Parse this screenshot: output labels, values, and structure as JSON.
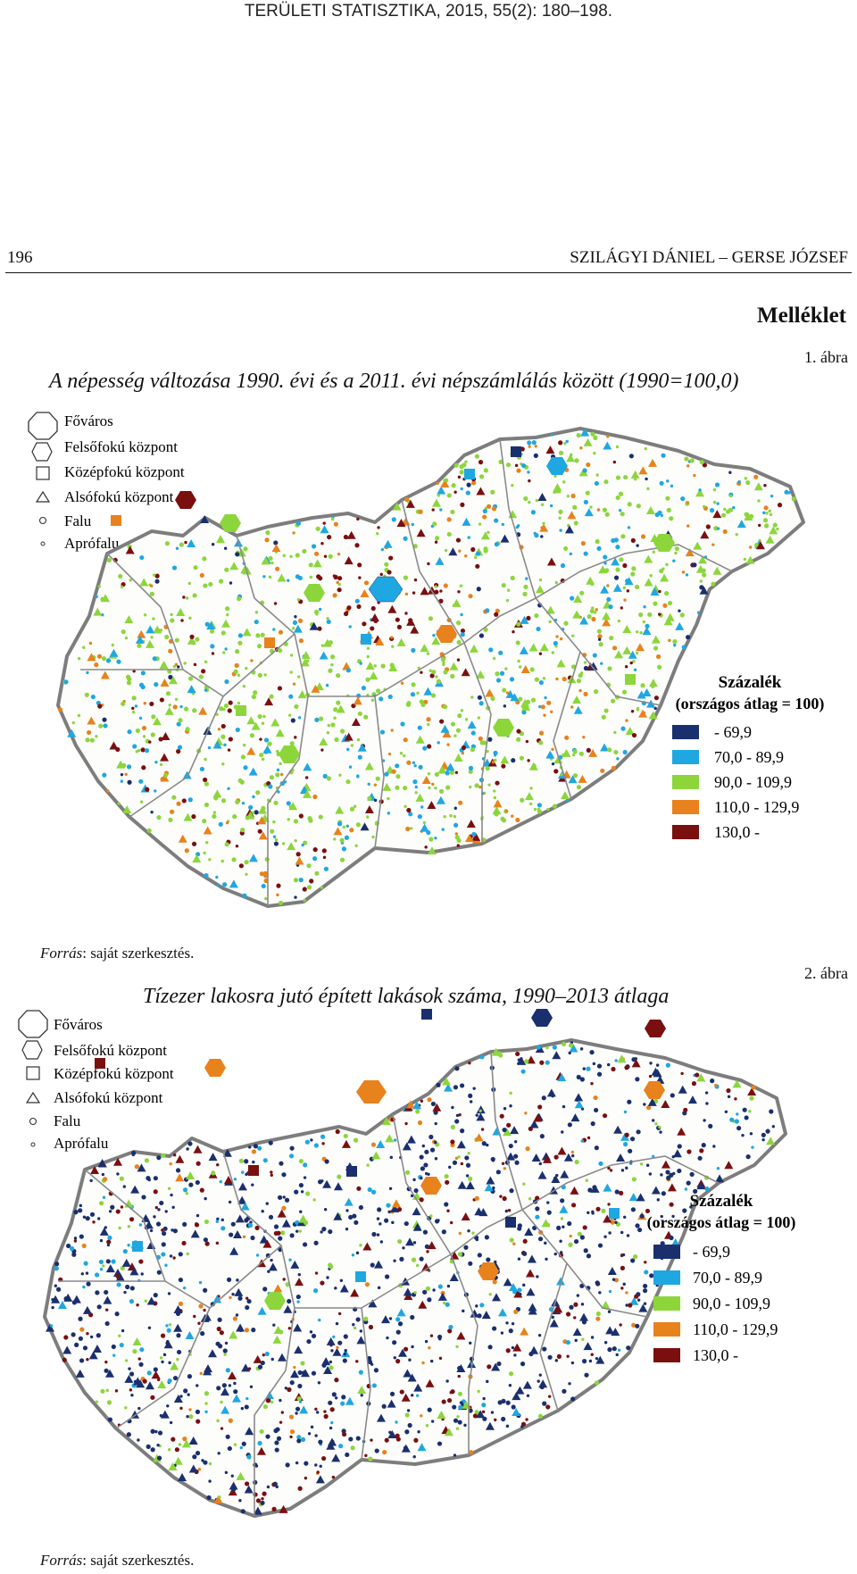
{
  "header": {
    "journal": "TERÜLETI STATISZTIKA, 2015, 55(2): 180–198.",
    "page_number": "196",
    "authors": "SZILÁGYI DÁNIEL – GERSE JÓZSEF"
  },
  "appendix_title": "Melléklet",
  "colors": {
    "c1": "#1a2f6e",
    "c2": "#1fa7e1",
    "c3": "#8cd63c",
    "c4": "#e8821c",
    "c5": "#7a0f0f",
    "border": "#7d7d7d"
  },
  "figures": [
    {
      "number": "1. ábra",
      "title": "A népesség változása 1990. évi és a 2011. évi népszámlálás között (1990=100,0)",
      "source_label": "Forrás",
      "source_text": ": saját szerkesztés.",
      "legend_shapes": [
        "Főváros",
        "Felsőfokú központ",
        "Középfokú központ",
        "Alsófokú központ",
        "Falu",
        "Aprófalu"
      ],
      "legend_title": "Százalék",
      "legend_subtitle": "(országos átlag = 100)",
      "legend_classes": [
        "- 69,9",
        "70,0 - 89,9",
        "90,0 - 109,9",
        "110,0 - 129,9",
        "130,0 -"
      ]
    },
    {
      "number": "2. ábra",
      "title": "Tízezer lakosra jutó épített lakások száma, 1990–2013 átlaga",
      "source_label": "Forrás",
      "source_text": ": saját szerkesztés.",
      "legend_shapes": [
        "Főváros",
        "Felsőfokú központ",
        "Középfokú központ",
        "Alsófokú központ",
        "Falu",
        "Aprófalu"
      ],
      "legend_title": "Százalék",
      "legend_subtitle": "(országos átlag = 100)",
      "legend_classes": [
        "- 69,9",
        "70,0 - 89,9",
        "90,0 - 109,9",
        "110,0 - 129,9",
        "130,0 -"
      ]
    }
  ]
}
